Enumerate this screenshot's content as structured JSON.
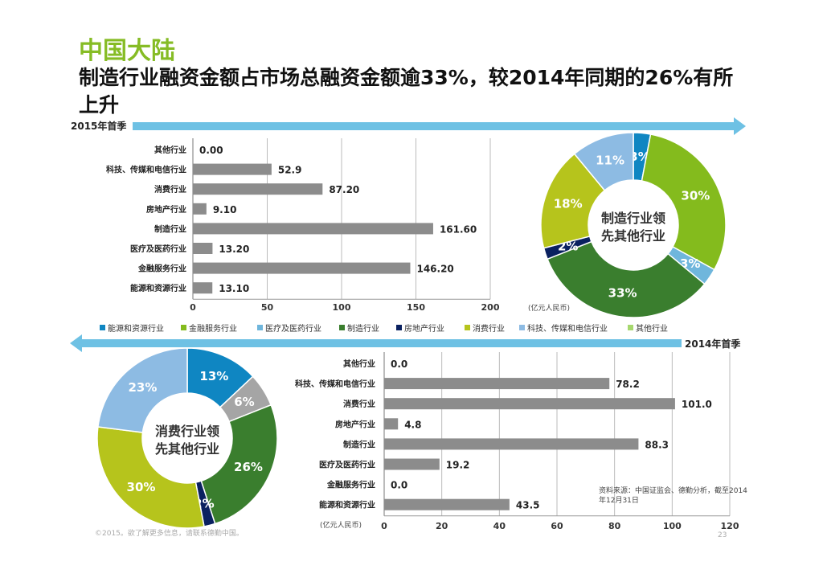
{
  "title": "中国大陆",
  "subtitle": "制造行业融资金额占市场总融资金额逾33%，较2014年同期的26%有所上升",
  "period_2015": "2015年首季",
  "period_2014": "2014年首季",
  "unit": "(亿元人民币)",
  "source": [
    "资料来源：中国证监会、德勤分析，截至2014",
    "年12月31日"
  ],
  "footer": "©2015。欲了解更多信息，请联系德勤中国。",
  "page_number": "23",
  "colors": {
    "title": "#86bc25",
    "arrow": "#6ec1e4",
    "bar": "#8c8c8c"
  },
  "legend": [
    {
      "label": "能源和资源行业",
      "color": "#0f86c2"
    },
    {
      "label": "金融服务行业",
      "color": "#84bb1d"
    },
    {
      "label": "医疗及医药行业",
      "color": "#6fb6dc"
    },
    {
      "label": "制造行业",
      "color": "#3a7e2e"
    },
    {
      "label": "房地产行业",
      "color": "#0a2160"
    },
    {
      "label": "消费行业",
      "color": "#b6c41c"
    },
    {
      "label": "科技、传媒和电信行业",
      "color": "#8dbbe3"
    },
    {
      "label": "其他行业",
      "color": "#a6d86e"
    }
  ],
  "chart_data": [
    {
      "type": "bar",
      "orientation": "horizontal",
      "period": "2015年首季",
      "categories": [
        "其他行业",
        "科技、传媒和电信行业",
        "消费行业",
        "房地产行业",
        "制造行业",
        "医疗及医药行业",
        "金融服务行业",
        "能源和资源行业"
      ],
      "values": [
        0.0,
        52.9,
        87.2,
        9.1,
        161.6,
        13.2,
        146.2,
        13.1
      ],
      "value_labels": [
        "0.00",
        "52.9",
        "87.20",
        "9.10",
        "161.60",
        "13.20",
        "146.20",
        "13.10"
      ],
      "xlim": [
        0,
        200
      ],
      "xticks": [
        0,
        50,
        100,
        150,
        200
      ],
      "xlabel": "(亿元人民币)",
      "grid": true
    },
    {
      "type": "pie",
      "donut": true,
      "period": "2015年首季",
      "center_label": [
        "制造行业领",
        "先其他行业"
      ],
      "slices": [
        {
          "label": "能源和资源行业",
          "value": 3,
          "color": "#0f86c2"
        },
        {
          "label": "金融服务行业",
          "value": 30,
          "color": "#84bb1d"
        },
        {
          "label": "医疗及医药行业",
          "value": 3,
          "color": "#6fb6dc"
        },
        {
          "label": "制造行业",
          "value": 33,
          "color": "#3a7e2e"
        },
        {
          "label": "房地产行业",
          "value": 2,
          "color": "#0a2160"
        },
        {
          "label": "消费行业",
          "value": 18,
          "color": "#b6c41c"
        },
        {
          "label": "科技、传媒和电信行业",
          "value": 11,
          "color": "#8dbbe3"
        }
      ]
    },
    {
      "type": "pie",
      "donut": true,
      "period": "2014年首季",
      "center_label": [
        "消费行业领",
        "先其他行业"
      ],
      "slices": [
        {
          "label": "能源和资源行业",
          "value": 13,
          "color": "#0f86c2"
        },
        {
          "label": "医疗及医药行业",
          "value": 6,
          "color": "#a5a5a5"
        },
        {
          "label": "制造行业",
          "value": 26,
          "color": "#3a7e2e"
        },
        {
          "label": "房地产行业",
          "value": 2,
          "color": "#0a2160"
        },
        {
          "label": "消费行业",
          "value": 30,
          "color": "#b6c41c"
        },
        {
          "label": "科技、传媒和电信行业",
          "value": 23,
          "color": "#8dbbe3"
        }
      ]
    },
    {
      "type": "bar",
      "orientation": "horizontal",
      "period": "2014年首季",
      "categories": [
        "其他行业",
        "科技、传媒和电信行业",
        "消费行业",
        "房地产行业",
        "制造行业",
        "医疗及医药行业",
        "金融服务行业",
        "能源和资源行业"
      ],
      "values": [
        0.0,
        78.2,
        101.0,
        4.8,
        88.3,
        19.2,
        0.0,
        43.5
      ],
      "value_labels": [
        "0.0",
        "78.2",
        "101.0",
        "4.8",
        "88.3",
        "19.2",
        "0.0",
        "43.5"
      ],
      "xlim": [
        0,
        120
      ],
      "xticks": [
        0,
        20,
        40,
        60,
        80,
        100,
        120
      ],
      "xlabel": "(亿元人民币)",
      "grid": true
    }
  ]
}
